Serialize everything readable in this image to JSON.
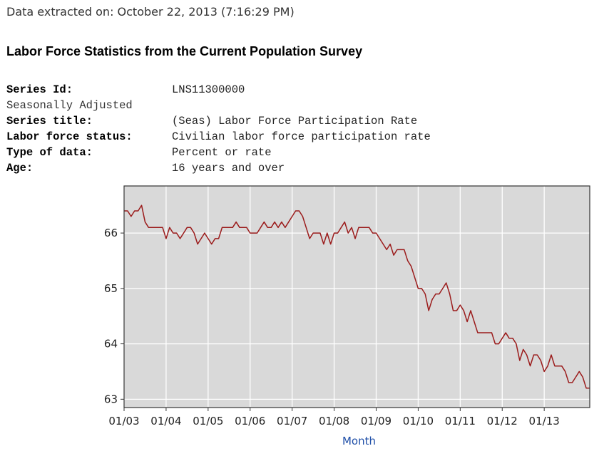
{
  "header": {
    "extracted_label": "Data extracted on: October 22, 2013 (7:16:29 PM)",
    "title": "Labor Force Statistics from the Current Population Survey"
  },
  "series_info": {
    "series_id_label": "Series Id:",
    "series_id": "LNS11300000",
    "adjustment": "Seasonally Adjusted",
    "series_title_label": "Series title:",
    "series_title": "(Seas) Labor Force Participation Rate",
    "status_label": "Labor force status:",
    "status": "Civilian labor force participation rate",
    "type_label": "Type of data:",
    "type": "Percent or rate",
    "age_label": "Age:",
    "age": "16 years and over"
  },
  "colors": {
    "plot_background": "#d9d9d9",
    "grid": "#ffffff",
    "line": "#9b1b1b",
    "axis_title": "#1f4fa8"
  },
  "chart_data": {
    "type": "line",
    "title": "",
    "xlabel": "Month",
    "ylabel": "",
    "x_ticks": [
      "01/03",
      "01/04",
      "01/05",
      "01/06",
      "01/07",
      "01/08",
      "01/09",
      "01/10",
      "01/11",
      "01/12",
      "01/13"
    ],
    "y_ticks": [
      "63",
      "64",
      "65",
      "66"
    ],
    "ylim": [
      62.85,
      66.85
    ],
    "xlim": [
      "2003-01",
      "2013-09"
    ],
    "grid": true,
    "series": [
      {
        "values": [
          66.4,
          66.4,
          66.3,
          66.4,
          66.4,
          66.5,
          66.2,
          66.1,
          66.1,
          66.1,
          66.1,
          66.1,
          65.9,
          66.1,
          66.0,
          66.0,
          65.9,
          66.0,
          66.1,
          66.1,
          66.0,
          65.8,
          65.9,
          66.0,
          65.9,
          65.8,
          65.9,
          65.9,
          66.1,
          66.1,
          66.1,
          66.1,
          66.2,
          66.1,
          66.1,
          66.1,
          66.0,
          66.0,
          66.0,
          66.1,
          66.2,
          66.1,
          66.1,
          66.2,
          66.1,
          66.2,
          66.1,
          66.2,
          66.3,
          66.4,
          66.4,
          66.3,
          66.1,
          65.9,
          66.0,
          66.0,
          66.0,
          65.8,
          66.0,
          65.8,
          66.0,
          66.0,
          66.1,
          66.2,
          66.0,
          66.1,
          65.9,
          66.1,
          66.1,
          66.1,
          66.1,
          66.0,
          66.0,
          65.9,
          65.8,
          65.7,
          65.8,
          65.6,
          65.7,
          65.7,
          65.7,
          65.5,
          65.4,
          65.2,
          65.0,
          65.0,
          64.9,
          64.6,
          64.8,
          64.9,
          64.9,
          65.0,
          65.1,
          64.9,
          64.6,
          64.6,
          64.7,
          64.6,
          64.4,
          64.6,
          64.4,
          64.2,
          64.2,
          64.2,
          64.2,
          64.2,
          64.0,
          64.0,
          64.1,
          64.2,
          64.1,
          64.1,
          64.0,
          63.7,
          63.9,
          63.8,
          63.6,
          63.8,
          63.8,
          63.7,
          63.5,
          63.6,
          63.8,
          63.6,
          63.6,
          63.6,
          63.5,
          63.3,
          63.3,
          63.4,
          63.5,
          63.4,
          63.2,
          63.2
        ]
      }
    ]
  }
}
